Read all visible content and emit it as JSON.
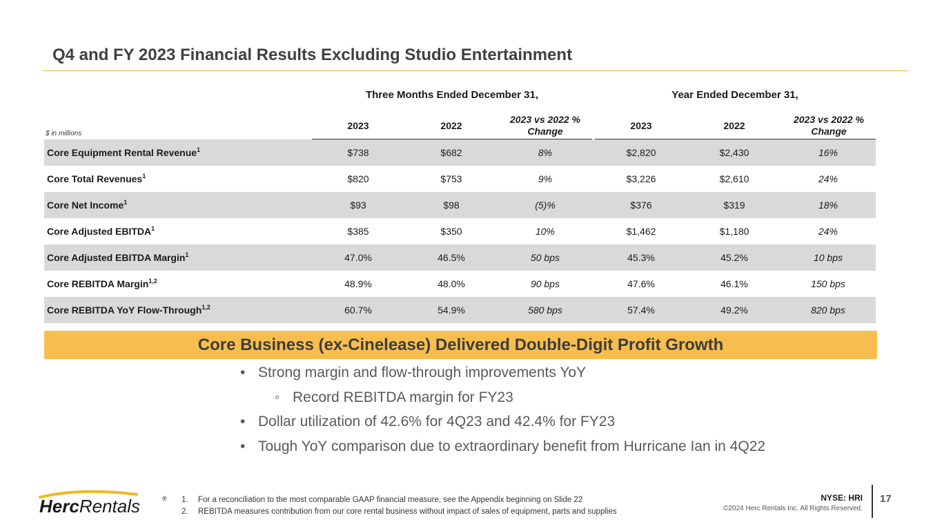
{
  "slide": {
    "title": "Q4 and FY 2023 Financial Results Excluding Studio Entertainment",
    "page_number": "17"
  },
  "table": {
    "units_note": "$ in millions",
    "group_quarter": "Three Months Ended December 31,",
    "group_year": "Year Ended December 31,",
    "columns": [
      "2023",
      "2022",
      "2023 vs 2022 % Change",
      "2023",
      "2022",
      "2023 vs 2022 % Change"
    ],
    "rows": [
      {
        "label": "Core Equipment Rental Revenue",
        "sup": "1",
        "q2023": "$738",
        "q2022": "$682",
        "qchg": "8%",
        "y2023": "$2,820",
        "y2022": "$2,430",
        "ychg": "16%"
      },
      {
        "label": "Core Total Revenues",
        "sup": "1",
        "q2023": "$820",
        "q2022": "$753",
        "qchg": "9%",
        "y2023": "$3,226",
        "y2022": "$2,610",
        "ychg": "24%"
      },
      {
        "label": "Core Net Income",
        "sup": "1",
        "q2023": "$93",
        "q2022": "$98",
        "qchg": "(5)%",
        "y2023": "$376",
        "y2022": "$319",
        "ychg": "18%"
      },
      {
        "label": "Core Adjusted EBITDA",
        "sup": "1",
        "q2023": "$385",
        "q2022": "$350",
        "qchg": "10%",
        "y2023": "$1,462",
        "y2022": "$1,180",
        "ychg": "24%"
      },
      {
        "label": "Core Adjusted EBITDA Margin",
        "sup": "1",
        "q2023": "47.0%",
        "q2022": "46.5%",
        "qchg": "50 bps",
        "y2023": "45.3%",
        "y2022": "45.2%",
        "ychg": "10 bps"
      },
      {
        "label": "Core REBITDA Margin",
        "sup": "1,2",
        "q2023": "48.9%",
        "q2022": "48.0%",
        "qchg": "90 bps",
        "y2023": "47.6%",
        "y2022": "46.1%",
        "ychg": "150 bps"
      },
      {
        "label": "Core REBITDA YoY Flow-Through",
        "sup": "1,2",
        "q2023": "60.7%",
        "q2022": "54.9%",
        "qchg": "580 bps",
        "y2023": "57.4%",
        "y2022": "49.2%",
        "ychg": "820 bps"
      }
    ]
  },
  "banner": {
    "text": "Core Business (ex-Cinelease) Delivered Double-Digit Profit Growth"
  },
  "bullets": {
    "b1": "Strong margin and flow-through improvements YoY",
    "b2": "Record REBITDA margin for FY23",
    "b3": "Dollar utilization of 42.6% for 4Q23 and 42.4% for FY23",
    "b4": "Tough YoY comparison due to extraordinary benefit from Hurricane Ian in 4Q22",
    "bullet_mark": "•",
    "sub_mark": "◦"
  },
  "footnotes": {
    "n1": "1.",
    "f1": "For a reconciliation to the most comparable GAAP financial measure, see the Appendix beginning on Slide 22",
    "n2": "2.",
    "f2": "REBITDA measures contribution from our core rental business without impact of sales of equipment, parts and supplies"
  },
  "brand": {
    "logo_text_bold": "Herc",
    "logo_text_light": "Rentals",
    "logo_registered": "®",
    "ticker": "NYSE: HRI",
    "copyright": "©2024 Herc Rentals Inc.  All Rights Reserved.",
    "accent_color": "#f2b824",
    "banner_color": "#f7be4f",
    "row_shade_color": "#d9d9d9"
  }
}
